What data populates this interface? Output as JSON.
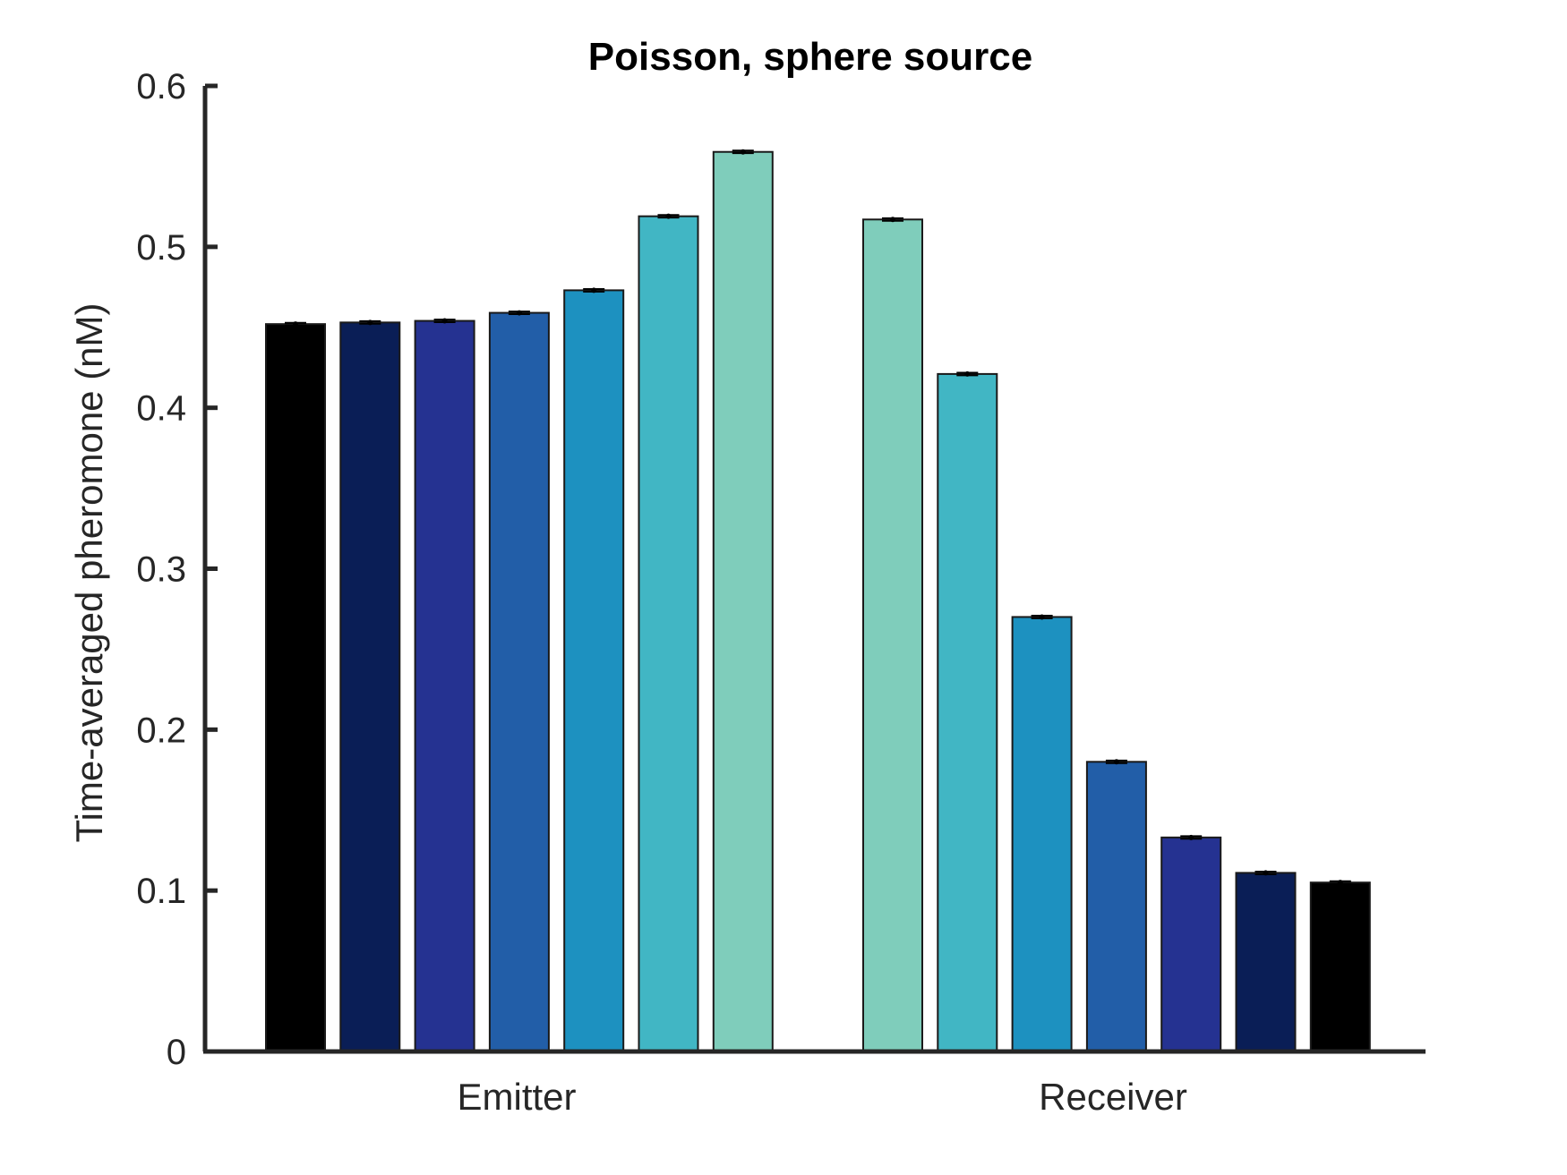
{
  "chart_data": {
    "type": "bar",
    "title": "Poisson, sphere source",
    "xlabel": "",
    "ylabel": "Time-averaged pheromone (nM)",
    "ylim": [
      0,
      0.6
    ],
    "yticks": [
      0,
      0.1,
      0.2,
      0.3,
      0.4,
      0.5,
      0.6
    ],
    "ytick_labels": [
      "0",
      "0.1",
      "0.2",
      "0.3",
      "0.4",
      "0.5",
      "0.6"
    ],
    "categories": [
      "Emitter",
      "Receiver"
    ],
    "grid": false,
    "legend": "none",
    "groups": [
      {
        "category": "Emitter",
        "bars": [
          {
            "value": 0.452,
            "error": 0.0008,
            "color": "#000000"
          },
          {
            "value": 0.453,
            "error": 0.0008,
            "color": "#0a1e56"
          },
          {
            "value": 0.454,
            "error": 0.0008,
            "color": "#253291"
          },
          {
            "value": 0.459,
            "error": 0.0008,
            "color": "#225ea8"
          },
          {
            "value": 0.473,
            "error": 0.0008,
            "color": "#1d91c0"
          },
          {
            "value": 0.519,
            "error": 0.0008,
            "color": "#41b6c4"
          },
          {
            "value": 0.559,
            "error": 0.0008,
            "color": "#7fcdbb"
          }
        ]
      },
      {
        "category": "Receiver",
        "bars": [
          {
            "value": 0.517,
            "error": 0.0008,
            "color": "#7fcdbb"
          },
          {
            "value": 0.421,
            "error": 0.0008,
            "color": "#41b6c4"
          },
          {
            "value": 0.27,
            "error": 0.0008,
            "color": "#1d91c0"
          },
          {
            "value": 0.18,
            "error": 0.0008,
            "color": "#225ea8"
          },
          {
            "value": 0.133,
            "error": 0.0008,
            "color": "#253291"
          },
          {
            "value": 0.111,
            "error": 0.0008,
            "color": "#0a1e56"
          },
          {
            "value": 0.105,
            "error": 0.0008,
            "color": "#000000"
          }
        ]
      }
    ]
  }
}
